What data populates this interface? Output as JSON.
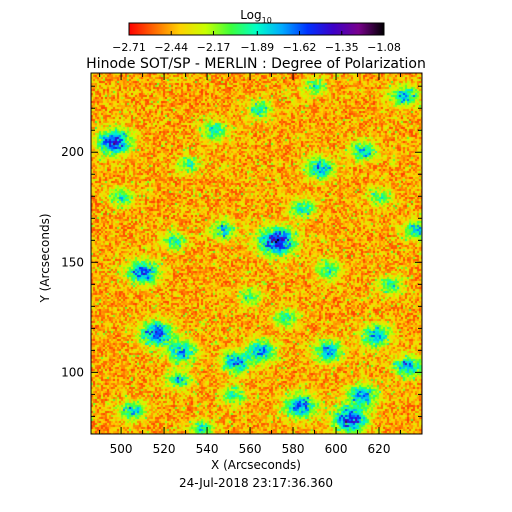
{
  "chart_data": {
    "type": "heatmap",
    "title": "Hinode SOT/SP - MERLIN : Degree of Polarization",
    "xlabel": "X (Arcseconds)",
    "ylabel": "Y (Arcseconds)",
    "xlim": [
      486,
      640
    ],
    "ylim": [
      72,
      236
    ],
    "xticks": [
      500,
      520,
      540,
      560,
      580,
      600,
      620
    ],
    "yticks": [
      100,
      150,
      200
    ],
    "timestamp": "24-Jul-2018 23:17:36.360",
    "colorbar": {
      "label": "Log",
      "label_subscript": "10",
      "range": [
        -2.71,
        -1.08
      ],
      "ticks": [
        "-2.71",
        "-2.44",
        "-2.17",
        "-1.89",
        "-1.62",
        "-1.35",
        "-1.08"
      ],
      "colors": [
        "#ff0000",
        "#ff6a00",
        "#ffd200",
        "#c8ff00",
        "#3cff3c",
        "#00ffc8",
        "#00aaff",
        "#0032ff",
        "#3c00c8",
        "#78008c",
        "#000000"
      ]
    },
    "grid": false,
    "legend": "none",
    "network_features": [
      {
        "x": 572,
        "y": 160,
        "strength": 1.0
      },
      {
        "x": 496,
        "y": 205,
        "strength": 0.9
      },
      {
        "x": 592,
        "y": 193,
        "strength": 0.7
      },
      {
        "x": 510,
        "y": 146,
        "strength": 0.8
      },
      {
        "x": 606,
        "y": 79,
        "strength": 0.9
      },
      {
        "x": 516,
        "y": 118,
        "strength": 0.85
      },
      {
        "x": 583,
        "y": 85,
        "strength": 0.8
      },
      {
        "x": 553,
        "y": 105,
        "strength": 0.7
      },
      {
        "x": 612,
        "y": 90,
        "strength": 0.75
      },
      {
        "x": 633,
        "y": 103,
        "strength": 0.7
      },
      {
        "x": 637,
        "y": 165,
        "strength": 0.6
      },
      {
        "x": 565,
        "y": 110,
        "strength": 0.7
      },
      {
        "x": 528,
        "y": 110,
        "strength": 0.7
      },
      {
        "x": 612,
        "y": 201,
        "strength": 0.6
      },
      {
        "x": 618,
        "y": 117,
        "strength": 0.7
      },
      {
        "x": 596,
        "y": 110,
        "strength": 0.7
      },
      {
        "x": 631,
        "y": 226,
        "strength": 0.65
      },
      {
        "x": 543,
        "y": 210,
        "strength": 0.55
      },
      {
        "x": 505,
        "y": 83,
        "strength": 0.6
      },
      {
        "x": 526,
        "y": 97,
        "strength": 0.55
      },
      {
        "x": 524,
        "y": 160,
        "strength": 0.5
      },
      {
        "x": 547,
        "y": 165,
        "strength": 0.55
      },
      {
        "x": 596,
        "y": 147,
        "strength": 0.55
      },
      {
        "x": 564,
        "y": 220,
        "strength": 0.5
      },
      {
        "x": 576,
        "y": 125,
        "strength": 0.5
      },
      {
        "x": 552,
        "y": 90,
        "strength": 0.5
      },
      {
        "x": 537,
        "y": 75,
        "strength": 0.5
      },
      {
        "x": 500,
        "y": 180,
        "strength": 0.5
      },
      {
        "x": 625,
        "y": 140,
        "strength": 0.5
      },
      {
        "x": 584,
        "y": 175,
        "strength": 0.55
      },
      {
        "x": 531,
        "y": 195,
        "strength": 0.45
      },
      {
        "x": 620,
        "y": 180,
        "strength": 0.45
      },
      {
        "x": 560,
        "y": 135,
        "strength": 0.45
      },
      {
        "x": 590,
        "y": 230,
        "strength": 0.45
      }
    ]
  }
}
